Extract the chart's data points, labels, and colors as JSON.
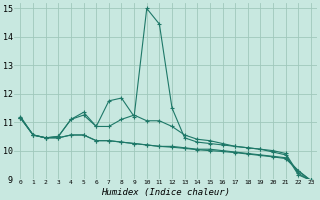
{
  "xlabel": "Humidex (Indice chaleur)",
  "ylabel": "",
  "xlim": [
    -0.5,
    23.5
  ],
  "ylim": [
    9,
    15.2
  ],
  "yticks": [
    9,
    10,
    11,
    12,
    13,
    14,
    15
  ],
  "xticks": [
    0,
    1,
    2,
    3,
    4,
    5,
    6,
    7,
    8,
    9,
    10,
    11,
    12,
    13,
    14,
    15,
    16,
    17,
    18,
    19,
    20,
    21,
    22,
    23
  ],
  "bg_color": "#c8e8e0",
  "grid_color": "#a0c8bc",
  "line_color": "#1e7868",
  "lines": [
    [
      11.2,
      10.55,
      10.45,
      10.5,
      11.1,
      11.35,
      10.85,
      11.75,
      11.85,
      11.2,
      15.0,
      14.45,
      11.5,
      10.45,
      10.3,
      10.25,
      10.2,
      10.15,
      10.1,
      10.05,
      9.95,
      9.85,
      9.15,
      8.95
    ],
    [
      11.15,
      10.55,
      10.45,
      10.5,
      11.1,
      11.25,
      10.85,
      10.85,
      11.1,
      11.25,
      11.05,
      11.05,
      10.85,
      10.55,
      10.4,
      10.35,
      10.25,
      10.15,
      10.1,
      10.05,
      10.0,
      9.9,
      9.2,
      8.95
    ],
    [
      11.15,
      10.55,
      10.45,
      10.45,
      10.55,
      10.55,
      10.35,
      10.35,
      10.3,
      10.25,
      10.2,
      10.15,
      10.15,
      10.1,
      10.05,
      10.05,
      10.0,
      9.95,
      9.9,
      9.85,
      9.8,
      9.75,
      9.3,
      8.95
    ],
    [
      11.15,
      10.55,
      10.45,
      10.45,
      10.55,
      10.55,
      10.35,
      10.35,
      10.3,
      10.25,
      10.2,
      10.15,
      10.12,
      10.08,
      10.03,
      10.0,
      9.97,
      9.93,
      9.88,
      9.83,
      9.78,
      9.72,
      9.28,
      8.95
    ]
  ]
}
